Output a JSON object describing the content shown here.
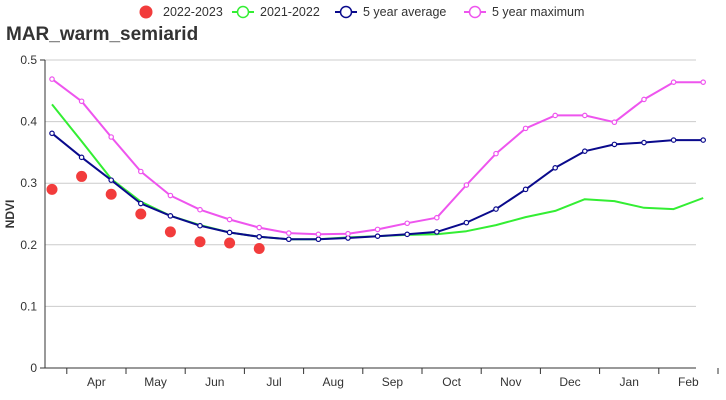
{
  "chart_data": {
    "type": "line",
    "title": "MAR_warm_semiarid",
    "xlabel": "",
    "ylabel": "NDVI",
    "ylim": [
      0,
      0.5
    ],
    "y_ticks": [
      "0",
      "0.1",
      "0.2",
      "0.3",
      "0.4",
      "0.5"
    ],
    "x_period_labels": [
      "Apr",
      "May",
      "Jun",
      "Jul",
      "Aug",
      "Sep",
      "Oct",
      "Nov",
      "Dec",
      "Jan",
      "Feb"
    ],
    "x_count": 23,
    "grid": true,
    "legend_position": "top",
    "series": [
      {
        "name": "2022-2023",
        "style": "dots",
        "color": "#f23c3c",
        "values": [
          0.29,
          0.311,
          0.282,
          0.25,
          0.221,
          0.205,
          0.203,
          0.194
        ]
      },
      {
        "name": "2021-2022",
        "style": "line",
        "color": "#33ee33",
        "values": [
          0.428,
          0.368,
          0.307,
          0.27,
          0.247,
          0.232,
          0.22,
          0.213,
          0.209,
          0.209,
          0.212,
          0.214,
          0.216,
          0.217,
          0.222,
          0.232,
          0.245,
          0.255,
          0.274,
          0.271,
          0.26,
          0.258,
          0.276
        ]
      },
      {
        "name": "5 year average",
        "style": "line-markers",
        "color": "#0a0a8c",
        "values": [
          0.381,
          0.342,
          0.305,
          0.267,
          0.247,
          0.231,
          0.22,
          0.213,
          0.209,
          0.209,
          0.211,
          0.214,
          0.217,
          0.221,
          0.236,
          0.258,
          0.29,
          0.325,
          0.352,
          0.363,
          0.366,
          0.37,
          0.37
        ]
      },
      {
        "name": "5 year maximum",
        "style": "line-markers",
        "color": "#ee55ee",
        "values": [
          0.469,
          0.433,
          0.375,
          0.319,
          0.28,
          0.257,
          0.241,
          0.228,
          0.219,
          0.217,
          0.218,
          0.225,
          0.235,
          0.244,
          0.297,
          0.348,
          0.389,
          0.41,
          0.41,
          0.399,
          0.436,
          0.464,
          0.464
        ]
      }
    ]
  }
}
